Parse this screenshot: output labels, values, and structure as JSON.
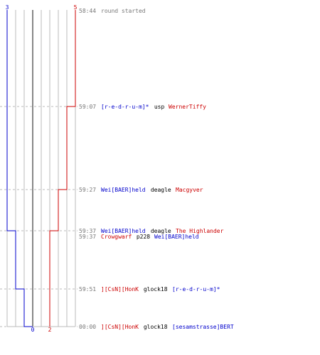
{
  "chart_data": {
    "type": "line",
    "title": "",
    "xlabel": "",
    "ylabel": "",
    "x_max_count": 5,
    "counts_top": {
      "blue": "3",
      "red": "5"
    },
    "counts_bottom": {
      "blue": "0",
      "red": "2"
    },
    "colors": {
      "blue": "#0000cc",
      "red": "#cc0000",
      "time": "#777777",
      "neutral": "#000000",
      "grid": "#bbbbbb",
      "center": "#888888",
      "dash": "#bbbbbb"
    },
    "series": [
      {
        "name": "",
        "color": "blue",
        "side": "left",
        "values": [
          3,
          3,
          3,
          3,
          2,
          2,
          1,
          0
        ]
      },
      {
        "name": "",
        "color": "red",
        "side": "right",
        "values": [
          5,
          5,
          4,
          3,
          2,
          2,
          2,
          2
        ]
      }
    ],
    "events": [
      {
        "time": "58:44",
        "segments": [
          {
            "text": "round started",
            "color": "time"
          }
        ]
      },
      {
        "time": "59:07",
        "segments": [
          {
            "text": "[r-e-d-r-u-m]*",
            "color": "blue"
          },
          {
            "text": " usp ",
            "color": "neutral"
          },
          {
            "text": "WernerTiffy",
            "color": "red"
          }
        ]
      },
      {
        "time": "59:27",
        "segments": [
          {
            "text": "Wei[BAER]held",
            "color": "blue"
          },
          {
            "text": " deagle ",
            "color": "neutral"
          },
          {
            "text": "Macgyver",
            "color": "red"
          }
        ]
      },
      {
        "time": "59:37",
        "segments": [
          {
            "text": "Wei[BAER]held",
            "color": "blue"
          },
          {
            "text": " deagle ",
            "color": "neutral"
          },
          {
            "text": "The Highlander",
            "color": "red"
          }
        ]
      },
      {
        "time": "59:37",
        "segments": [
          {
            "text": "Crowgwarf",
            "color": "red"
          },
          {
            "text": " p228 ",
            "color": "neutral"
          },
          {
            "text": "Wei[BAER]held",
            "color": "blue"
          }
        ]
      },
      {
        "time": "59:51",
        "segments": [
          {
            "text": "][CsN][HonK",
            "color": "red"
          },
          {
            "text": " glock18 ",
            "color": "neutral"
          },
          {
            "text": "[r-e-d-r-u-m]*",
            "color": "blue"
          }
        ]
      },
      {
        "time": "00:00",
        "segments": [
          {
            "text": "][CsN][HonK",
            "color": "red"
          },
          {
            "text": " glock18 ",
            "color": "neutral"
          },
          {
            "text": "[sesamstrasse]BERT",
            "color": "blue"
          }
        ]
      }
    ]
  }
}
